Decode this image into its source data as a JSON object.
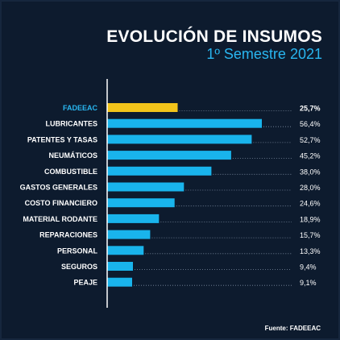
{
  "header": {
    "title": "EVOLUCIÓN DE INSUMOS",
    "subtitle": "1º Semestre 2021"
  },
  "source": "Fuente: FADEEAC",
  "colors": {
    "background": "#0d1b2e",
    "bar": "#19b4ec",
    "highlight": "#f2c41a",
    "highlight_label": "#29b6f0",
    "text": "#ffffff",
    "axis": "#ffffff"
  },
  "chart_data": {
    "type": "bar",
    "orientation": "horizontal",
    "title": "EVOLUCIÓN DE INSUMOS",
    "subtitle": "1º Semestre 2021",
    "categories": [
      "FADEEAC",
      "LUBRICANTES",
      "PATENTES Y TASAS",
      "NEUMÁTICOS",
      "COMBUSTIBLE",
      "GASTOS GENERALES",
      "COSTO FINANCIERO",
      "MATERIAL RODANTE",
      "REPARACIONES",
      "PERSONAL",
      "SEGUROS",
      "PEAJE"
    ],
    "values": [
      25.7,
      56.4,
      52.7,
      45.2,
      38.0,
      28.0,
      24.6,
      18.9,
      15.7,
      13.3,
      9.4,
      9.1
    ],
    "value_labels": [
      "25,7%",
      "56,4%",
      "52,7%",
      "45,2%",
      "38,0%",
      "28,0%",
      "24,6%",
      "18,9%",
      "15,7%",
      "13,3%",
      "9,4%",
      "9,1%"
    ],
    "highlight_index": 0,
    "xlim": [
      0,
      60
    ],
    "grid": false,
    "legend": "none"
  }
}
